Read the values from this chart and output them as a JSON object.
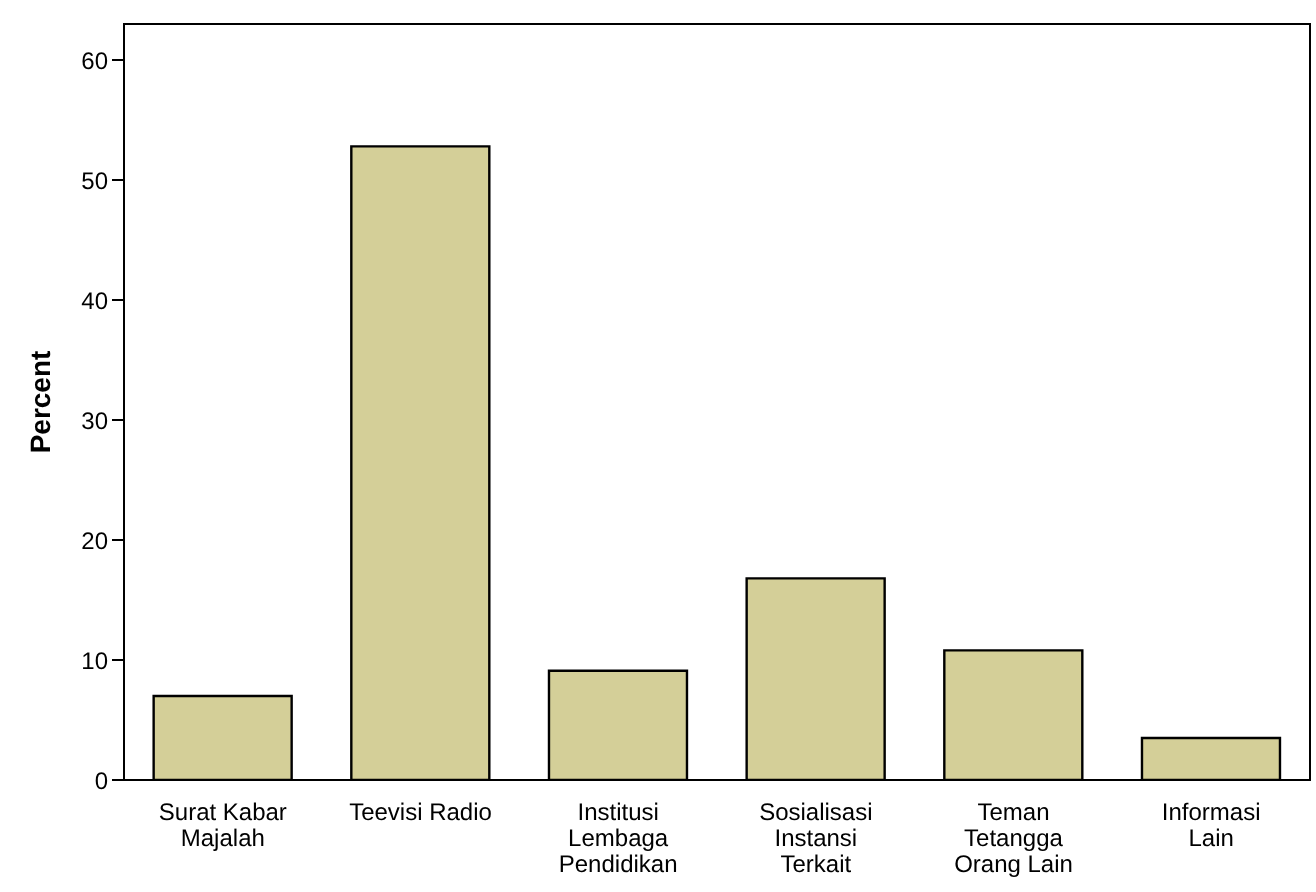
{
  "chart_data": {
    "type": "bar",
    "ylabel": "Percent",
    "categories": [
      "Surat Kabar\nMajalah",
      "Teevisi Radio",
      "Institusi\nLembaga\nPendidikan",
      "Sosialisasi\nInstansi\nTerkait",
      "Teman\nTetangga\nOrang Lain",
      "Informasi\nLain"
    ],
    "values": [
      7.0,
      52.8,
      9.1,
      16.8,
      10.8,
      3.5
    ],
    "color": "#d4cf98",
    "ylim": [
      0,
      63
    ],
    "yticks": [
      0,
      10,
      20,
      30,
      40,
      50,
      60
    ]
  }
}
